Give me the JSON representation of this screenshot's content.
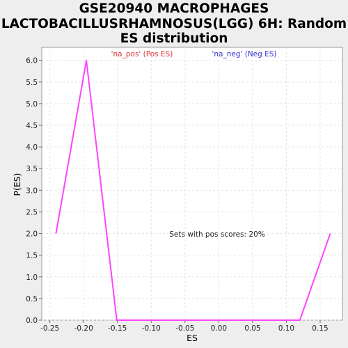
{
  "chart_data": {
    "type": "line",
    "title_lines": [
      "GSE20940 MACROPHAGES",
      "LACTOBACILLUSRHAMNOSUS(LGG) 6H: Random",
      "ES distribution"
    ],
    "xlabel": "ES",
    "ylabel": "P(ES)",
    "xlim": [
      -0.262,
      0.183
    ],
    "ylim": [
      0.0,
      6.3
    ],
    "xticks": [
      -0.25,
      -0.2,
      -0.15,
      -0.1,
      -0.05,
      0.0,
      0.05,
      0.1,
      0.15
    ],
    "xtick_labels": [
      "-0.25",
      "-0.20",
      "-0.15",
      "-0.10",
      "-0.05",
      "0.00",
      "0.05",
      "0.10",
      "0.15"
    ],
    "yticks": [
      0.0,
      0.5,
      1.0,
      1.5,
      2.0,
      2.5,
      3.0,
      3.5,
      4.0,
      4.5,
      5.0,
      5.5,
      6.0
    ],
    "ytick_labels": [
      "0.0",
      "0.5",
      "1.0",
      "1.5",
      "2.0",
      "2.5",
      "3.0",
      "3.5",
      "4.0",
      "4.5",
      "5.0",
      "5.5",
      "6.0"
    ],
    "grid": true,
    "series": [
      {
        "name": "",
        "color": "#ff44ff",
        "x": [
          -0.241,
          -0.196,
          -0.151,
          -0.105,
          -0.06,
          -0.015,
          0.03,
          0.075,
          0.12,
          0.165
        ],
        "y": [
          2.0,
          6.0,
          0.0,
          0.0,
          0.0,
          0.0,
          0.0,
          0.0,
          0.0,
          2.0
        ]
      }
    ],
    "legend": [
      {
        "label": "'na_pos' (Pos ES)",
        "color": "#dd3333"
      },
      {
        "label": "'na_neg' (Neg ES)",
        "color": "#3333cc"
      }
    ],
    "legend_placement": "top",
    "annotation": "Sets with pos scores: 20%"
  }
}
